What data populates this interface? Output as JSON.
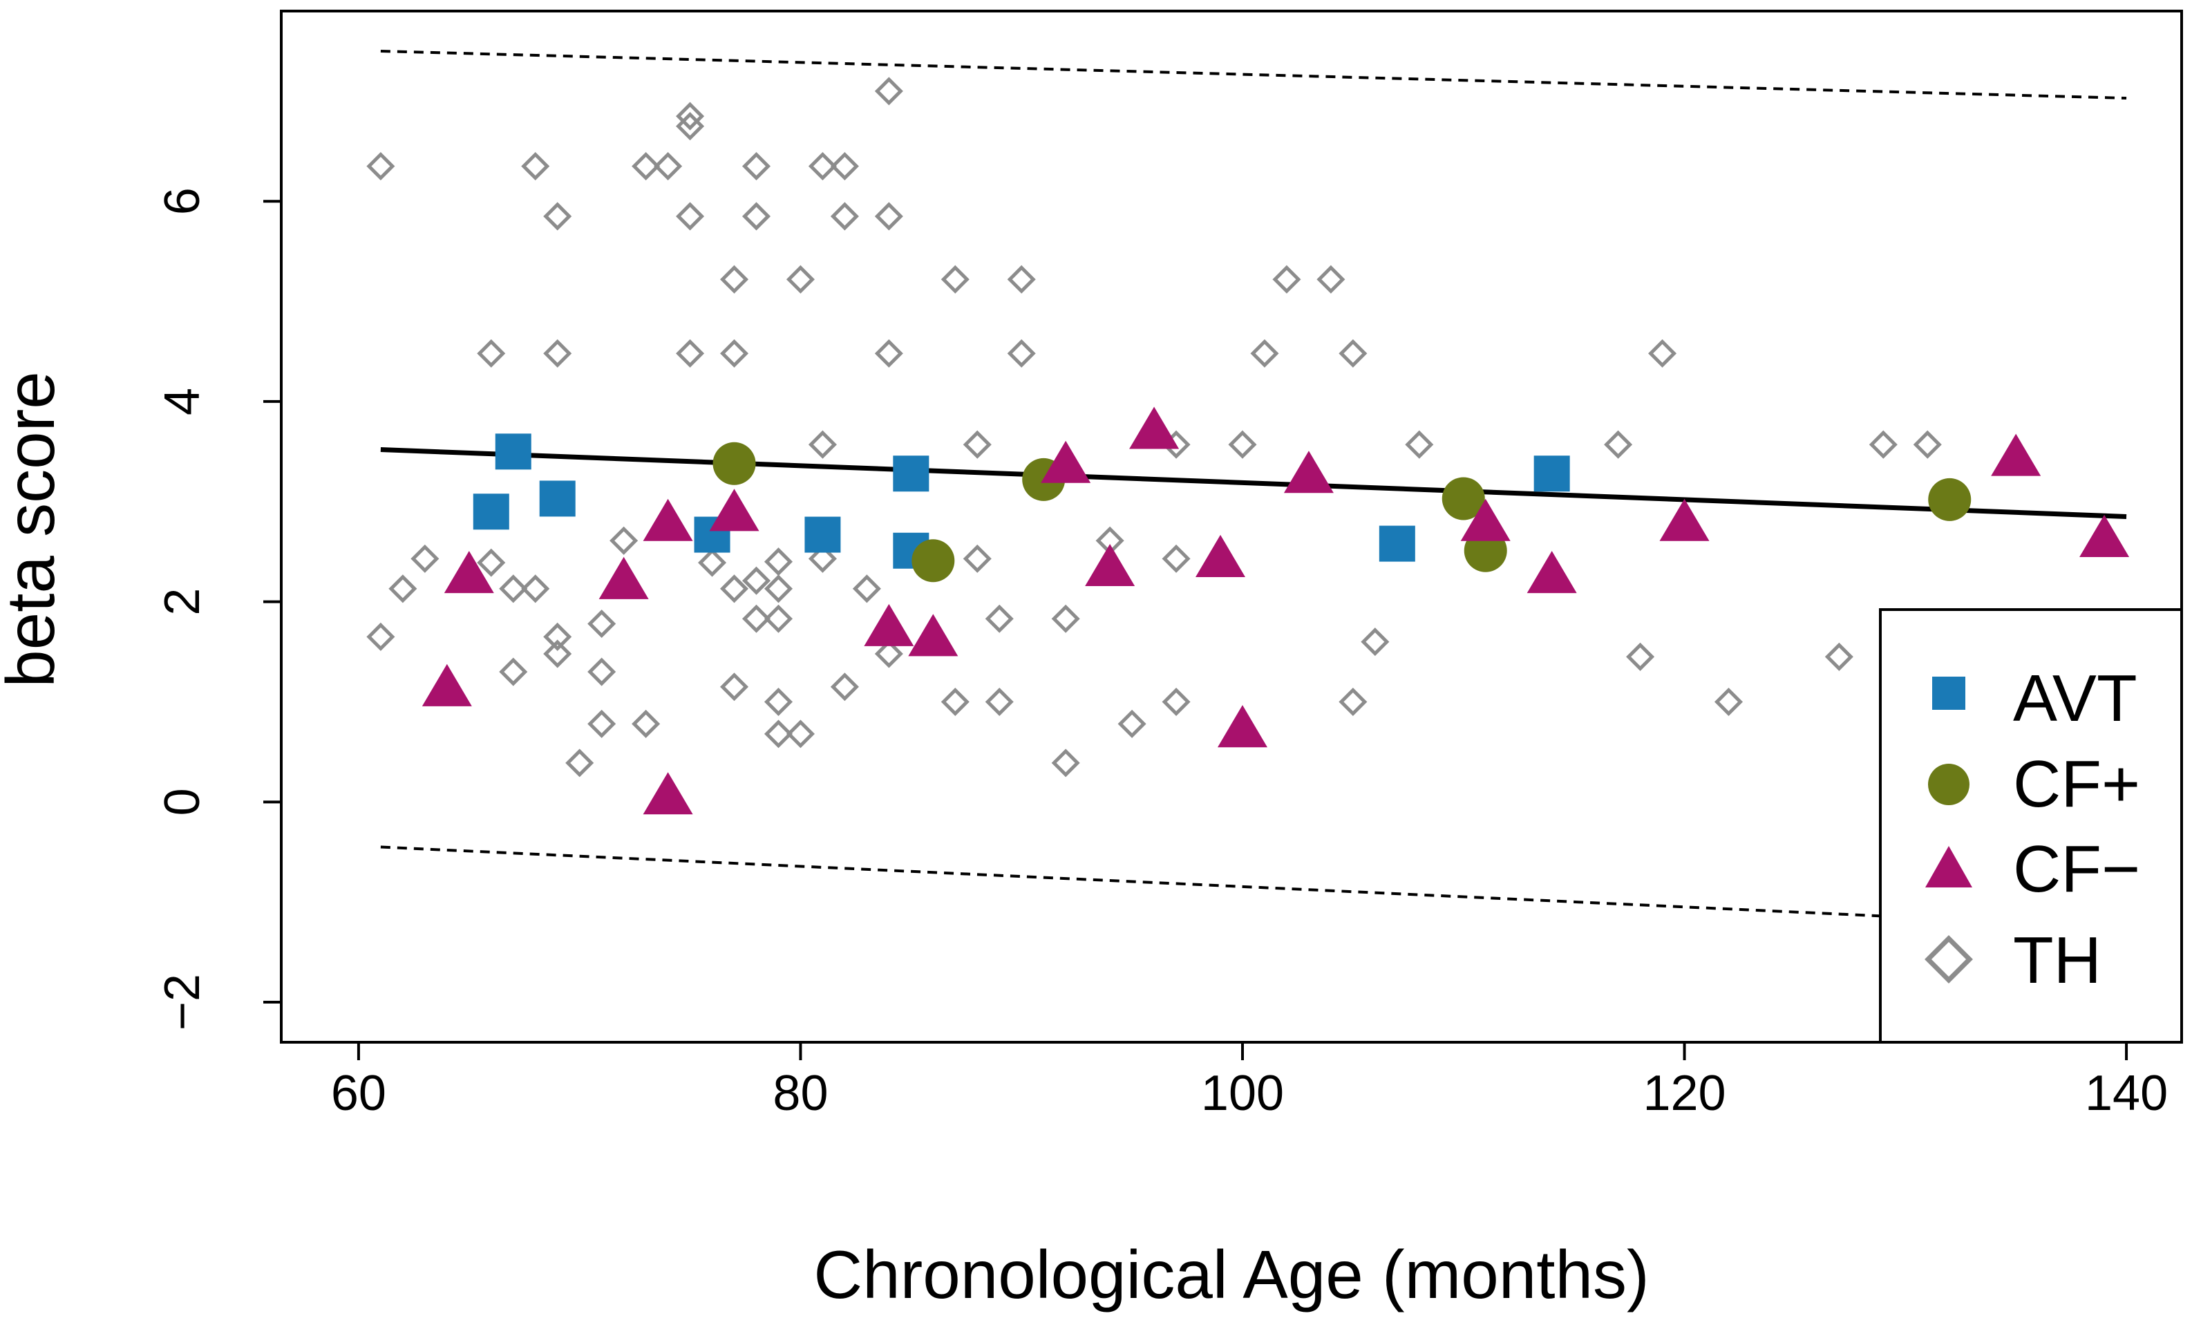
{
  "chart_data": {
    "type": "scatter",
    "title": "",
    "xlabel": "Chronological Age (months)",
    "ylabel": "beta score",
    "xlim": [
      56.5,
      142.5
    ],
    "ylim": [
      -2.4,
      7.9
    ],
    "xticks": [
      60,
      80,
      100,
      120,
      140
    ],
    "yticks": [
      -2,
      0,
      2,
      4,
      6
    ],
    "grid": false,
    "legend_position": "bottom-right",
    "fit_line": {
      "x": [
        61,
        140
      ],
      "y": [
        3.52,
        2.85
      ]
    },
    "prediction_upper": {
      "x": [
        61,
        140
      ],
      "y": [
        7.5,
        7.03
      ]
    },
    "prediction_lower": {
      "x": [
        61,
        130
      ],
      "y": [
        -0.45,
        -1.15
      ]
    },
    "series": [
      {
        "name": "AVT",
        "marker": "square",
        "color": "#1a7ab6",
        "points": [
          [
            66,
            2.9
          ],
          [
            67,
            3.5
          ],
          [
            69,
            3.03
          ],
          [
            76,
            2.67
          ],
          [
            81,
            2.67
          ],
          [
            85,
            3.28
          ],
          [
            85,
            2.51
          ],
          [
            107,
            2.58
          ],
          [
            114,
            3.28
          ]
        ]
      },
      {
        "name": "CF+",
        "marker": "circle",
        "color": "#6b7a17",
        "points": [
          [
            77,
            3.38
          ],
          [
            86,
            2.41
          ],
          [
            91,
            3.22
          ],
          [
            110,
            3.03
          ],
          [
            111,
            2.51
          ],
          [
            132,
            3.02
          ]
        ]
      },
      {
        "name": "CF−",
        "marker": "triangle",
        "color": "#a8116c",
        "points": [
          [
            64,
            1.15
          ],
          [
            65,
            2.28
          ],
          [
            72,
            2.22
          ],
          [
            74,
            2.8
          ],
          [
            74,
            0.07
          ],
          [
            77,
            2.9
          ],
          [
            84,
            1.75
          ],
          [
            86,
            1.65
          ],
          [
            92,
            3.38
          ],
          [
            94,
            2.35
          ],
          [
            96,
            3.72
          ],
          [
            99,
            2.44
          ],
          [
            100,
            0.74
          ],
          [
            103,
            3.28
          ],
          [
            111,
            2.8
          ],
          [
            114,
            2.28
          ],
          [
            120,
            2.8
          ],
          [
            135,
            3.45
          ],
          [
            139,
            2.64
          ]
        ]
      },
      {
        "name": "TH",
        "marker": "diamond",
        "color": "#8c8c8c",
        "points": [
          [
            61,
            6.35
          ],
          [
            61,
            1.65
          ],
          [
            62,
            2.13
          ],
          [
            63,
            2.43
          ],
          [
            66,
            4.48
          ],
          [
            66,
            2.39
          ],
          [
            67,
            2.13
          ],
          [
            67,
            1.3
          ],
          [
            68,
            6.35
          ],
          [
            68,
            2.13
          ],
          [
            69,
            5.85
          ],
          [
            69,
            4.48
          ],
          [
            69,
            1.65
          ],
          [
            69,
            1.48
          ],
          [
            70,
            0.39
          ],
          [
            71,
            1.78
          ],
          [
            71,
            1.3
          ],
          [
            71,
            0.78
          ],
          [
            72,
            2.61
          ],
          [
            73,
            6.35
          ],
          [
            73,
            0.78
          ],
          [
            74,
            6.35
          ],
          [
            75,
            6.85
          ],
          [
            75,
            6.75
          ],
          [
            75,
            5.85
          ],
          [
            75,
            4.48
          ],
          [
            76,
            2.39
          ],
          [
            77,
            5.22
          ],
          [
            77,
            4.48
          ],
          [
            77,
            2.13
          ],
          [
            77,
            1.15
          ],
          [
            78,
            6.35
          ],
          [
            78,
            5.85
          ],
          [
            78,
            2.21
          ],
          [
            78,
            1.83
          ],
          [
            79,
            2.4
          ],
          [
            79,
            2.13
          ],
          [
            79,
            1.83
          ],
          [
            79,
            1.0
          ],
          [
            79,
            0.68
          ],
          [
            80,
            5.22
          ],
          [
            80,
            0.68
          ],
          [
            81,
            6.35
          ],
          [
            81,
            3.57
          ],
          [
            81,
            2.43
          ],
          [
            82,
            6.35
          ],
          [
            82,
            5.85
          ],
          [
            82,
            1.15
          ],
          [
            83,
            2.13
          ],
          [
            84,
            7.1
          ],
          [
            84,
            5.85
          ],
          [
            84,
            4.48
          ],
          [
            84,
            1.48
          ],
          [
            87,
            5.22
          ],
          [
            87,
            1.0
          ],
          [
            88,
            3.57
          ],
          [
            88,
            2.43
          ],
          [
            89,
            1.83
          ],
          [
            89,
            1.0
          ],
          [
            90,
            5.22
          ],
          [
            90,
            4.48
          ],
          [
            92,
            1.83
          ],
          [
            92,
            0.39
          ],
          [
            94,
            2.61
          ],
          [
            95,
            0.78
          ],
          [
            97,
            3.57
          ],
          [
            97,
            2.43
          ],
          [
            97,
            1.0
          ],
          [
            100,
            3.57
          ],
          [
            101,
            4.48
          ],
          [
            102,
            5.22
          ],
          [
            104,
            5.22
          ],
          [
            105,
            4.48
          ],
          [
            105,
            1.0
          ],
          [
            106,
            1.6
          ],
          [
            108,
            3.57
          ],
          [
            117,
            3.57
          ],
          [
            118,
            1.45
          ],
          [
            119,
            4.48
          ],
          [
            122,
            1.0
          ],
          [
            127,
            1.45
          ],
          [
            129,
            3.57
          ],
          [
            131,
            3.57
          ]
        ]
      }
    ]
  },
  "legend": {
    "items": [
      {
        "label": "AVT",
        "marker": "square",
        "color": "#1a7ab6"
      },
      {
        "label": "CF+",
        "marker": "circle",
        "color": "#6b7a17"
      },
      {
        "label": "CF−",
        "marker": "triangle",
        "color": "#a8116c"
      },
      {
        "label": "TH",
        "marker": "diamond",
        "color": "#8c8c8c"
      }
    ]
  }
}
